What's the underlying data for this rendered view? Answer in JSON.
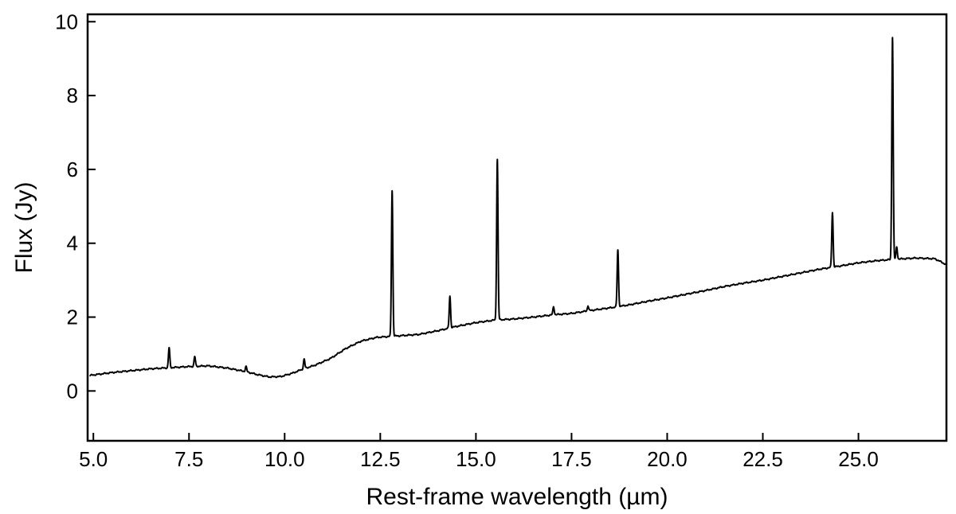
{
  "chart_data": {
    "type": "line",
    "title": "",
    "xlabel": "Rest-frame wavelength (µm)",
    "ylabel": "Flux (Jy)",
    "xlim": [
      4.85,
      27.3
    ],
    "ylim": [
      -1.35,
      10.2
    ],
    "xticks": [
      5.0,
      7.5,
      10.0,
      12.5,
      15.0,
      17.5,
      20.0,
      22.5,
      25.0
    ],
    "xtick_labels": [
      "5.0",
      "7.5",
      "10.0",
      "12.5",
      "15.0",
      "17.5",
      "20.0",
      "22.5",
      "25.0"
    ],
    "yticks": [
      0,
      2,
      4,
      6,
      8,
      10
    ],
    "ytick_labels": [
      "0",
      "2",
      "4",
      "6",
      "8",
      "10"
    ],
    "grid": false,
    "legend": "none",
    "line_color": "#000000",
    "series": [
      {
        "continuum": [
          [
            4.9,
            0.42
          ],
          [
            5.5,
            0.5
          ],
          [
            6.0,
            0.55
          ],
          [
            6.5,
            0.6
          ],
          [
            7.0,
            0.63
          ],
          [
            7.5,
            0.66
          ],
          [
            8.0,
            0.68
          ],
          [
            8.5,
            0.62
          ],
          [
            9.0,
            0.52
          ],
          [
            9.3,
            0.44
          ],
          [
            9.6,
            0.38
          ],
          [
            9.9,
            0.39
          ],
          [
            10.2,
            0.48
          ],
          [
            10.5,
            0.6
          ],
          [
            10.8,
            0.7
          ],
          [
            11.2,
            0.88
          ],
          [
            11.6,
            1.15
          ],
          [
            12.0,
            1.35
          ],
          [
            12.4,
            1.45
          ],
          [
            12.8,
            1.48
          ],
          [
            13.5,
            1.53
          ],
          [
            14.0,
            1.63
          ],
          [
            14.5,
            1.75
          ],
          [
            15.0,
            1.85
          ],
          [
            15.5,
            1.92
          ],
          [
            16.0,
            1.95
          ],
          [
            16.5,
            2.0
          ],
          [
            17.0,
            2.06
          ],
          [
            17.5,
            2.1
          ],
          [
            18.0,
            2.18
          ],
          [
            18.5,
            2.25
          ],
          [
            19.0,
            2.33
          ],
          [
            19.5,
            2.43
          ],
          [
            20.0,
            2.52
          ],
          [
            20.5,
            2.62
          ],
          [
            21.0,
            2.72
          ],
          [
            21.5,
            2.83
          ],
          [
            22.0,
            2.92
          ],
          [
            22.5,
            3.0
          ],
          [
            23.0,
            3.1
          ],
          [
            23.5,
            3.2
          ],
          [
            24.0,
            3.3
          ],
          [
            24.5,
            3.38
          ],
          [
            25.0,
            3.47
          ],
          [
            25.5,
            3.53
          ],
          [
            26.0,
            3.57
          ],
          [
            26.5,
            3.6
          ],
          [
            27.0,
            3.58
          ],
          [
            27.3,
            3.42
          ]
        ],
        "emission_lines": [
          {
            "x": 6.98,
            "peak": 1.17
          },
          {
            "x": 7.65,
            "peak": 0.93
          },
          {
            "x": 8.99,
            "peak": 0.66
          },
          {
            "x": 10.51,
            "peak": 0.86
          },
          {
            "x": 12.81,
            "peak": 5.42
          },
          {
            "x": 14.32,
            "peak": 2.57
          },
          {
            "x": 15.56,
            "peak": 6.27
          },
          {
            "x": 17.03,
            "peak": 2.28
          },
          {
            "x": 17.93,
            "peak": 2.3
          },
          {
            "x": 18.71,
            "peak": 3.82
          },
          {
            "x": 24.32,
            "peak": 4.83
          },
          {
            "x": 25.89,
            "peak": 9.57
          },
          {
            "x": 26.0,
            "peak": 3.9
          }
        ]
      }
    ]
  }
}
